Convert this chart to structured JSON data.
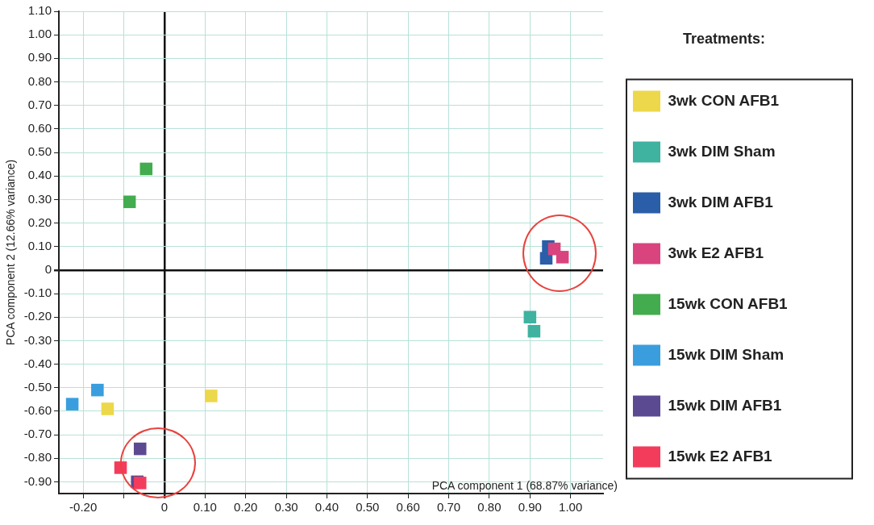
{
  "chart_data": {
    "type": "scatter",
    "xlabel": "PCA component 1 (68.87% variance)",
    "ylabel": "PCA component 2 (12.66% variance)",
    "legend_title": "Treatments:",
    "legend": "right",
    "marker": "square",
    "grid": true,
    "xlim": [
      -0.26,
      1.08
    ],
    "ylim": [
      -0.95,
      1.1
    ],
    "xticks": [
      {
        "value": -0.2,
        "label": "-0.20"
      },
      {
        "value": -0.1,
        "label": null
      },
      0,
      {
        "value": 0.1,
        "label": "0.10"
      },
      {
        "value": 0.2,
        "label": "0.20"
      },
      {
        "value": 0.3,
        "label": "0.30"
      },
      {
        "value": 0.4,
        "label": "0.40"
      },
      {
        "value": 0.5,
        "label": "0.50"
      },
      {
        "value": 0.6,
        "label": "0.60"
      },
      {
        "value": 0.7,
        "label": "0.70"
      },
      {
        "value": 0.8,
        "label": "0.80"
      },
      {
        "value": 0.9,
        "label": "0.90"
      },
      {
        "value": 1.0,
        "label": "1.00"
      }
    ],
    "yticks": [
      {
        "value": -0.9,
        "label": "-0.90"
      },
      {
        "value": -0.8,
        "label": "-0.80"
      },
      {
        "value": -0.7,
        "label": "-0.70"
      },
      {
        "value": -0.6,
        "label": "-0.60"
      },
      {
        "value": -0.5,
        "label": "-0.50"
      },
      {
        "value": -0.4,
        "label": "-0.40"
      },
      {
        "value": -0.3,
        "label": "-0.30"
      },
      {
        "value": -0.2,
        "label": "-0.20"
      },
      {
        "value": -0.1,
        "label": "-0.10"
      },
      0,
      {
        "value": 0.1,
        "label": "0.10"
      },
      {
        "value": 0.2,
        "label": "0.20"
      },
      {
        "value": 0.3,
        "label": "0.30"
      },
      {
        "value": 0.4,
        "label": "0.40"
      },
      {
        "value": 0.5,
        "label": "0.50"
      },
      {
        "value": 0.6,
        "label": "0.60"
      },
      {
        "value": 0.7,
        "label": "0.70"
      },
      {
        "value": 0.8,
        "label": "0.80"
      },
      {
        "value": 0.9,
        "label": "0.90"
      },
      {
        "value": 1.0,
        "label": "1.00"
      },
      {
        "value": 1.1,
        "label": "1.10"
      }
    ],
    "series": [
      {
        "name": "3wk CON AFB1",
        "color": "#ecd84a",
        "x": [
          -0.14,
          0.115
        ],
        "values": [
          -0.59,
          -0.535
        ]
      },
      {
        "name": "3wk DIM Sham",
        "color": "#3fb2a0",
        "x": [
          0.9,
          0.91
        ],
        "values": [
          -0.2,
          -0.26
        ]
      },
      {
        "name": "3wk DIM AFB1",
        "color": "#2b5ea8",
        "x": [
          0.945,
          0.94
        ],
        "values": [
          0.1,
          0.05
        ]
      },
      {
        "name": "3wk E2 AFB1",
        "color": "#d9447f",
        "x": [
          0.96,
          0.98
        ],
        "values": [
          0.09,
          0.055
        ]
      },
      {
        "name": "15wk CON AFB1",
        "color": "#43ac4e",
        "x": [
          -0.045,
          -0.086
        ],
        "values": [
          0.43,
          0.29
        ]
      },
      {
        "name": "15wk DIM Sham",
        "color": "#3a9ede",
        "x": [
          -0.165,
          -0.227
        ],
        "values": [
          -0.51,
          -0.57
        ]
      },
      {
        "name": "15wk DIM AFB1",
        "color": "#5b4a92",
        "x": [
          -0.06,
          -0.067
        ],
        "values": [
          -0.76,
          -0.9
        ]
      },
      {
        "name": "15wk E2 AFB1",
        "color": "#f33c5c",
        "x": [
          -0.108,
          -0.06
        ],
        "values": [
          -0.84,
          -0.905
        ]
      }
    ]
  }
}
